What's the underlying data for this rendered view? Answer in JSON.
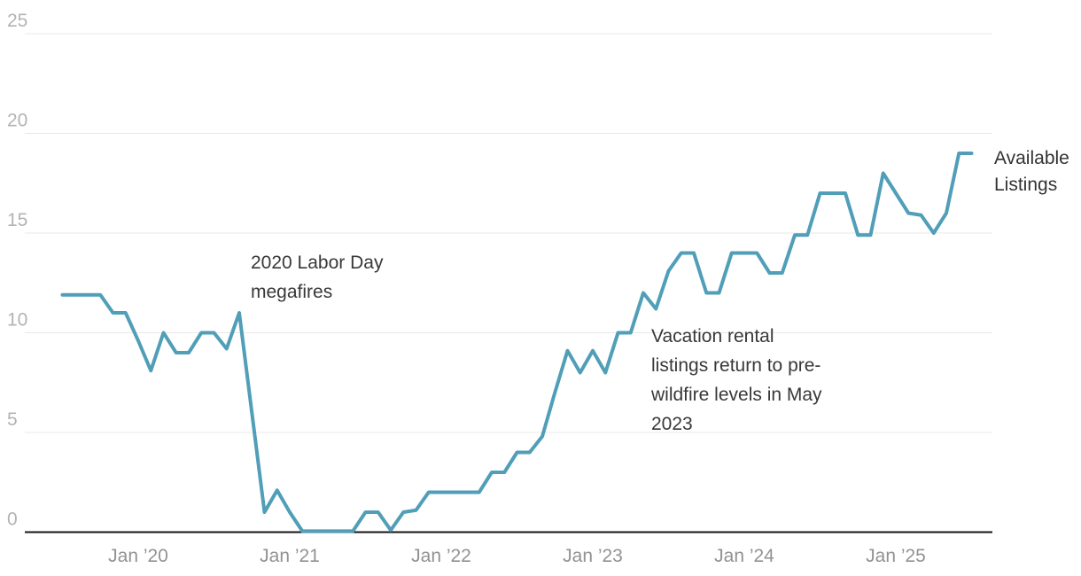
{
  "chart_data": {
    "type": "line",
    "title": "",
    "series_label": "Available Listings",
    "series_label_lines": [
      "Available",
      "Listings"
    ],
    "line_color": "#509eb8",
    "grid": "horizontal",
    "ylim": [
      0,
      25
    ],
    "y_ticks": [
      0,
      5,
      10,
      15,
      20,
      25
    ],
    "x_tick_labels": [
      "Jan ’20",
      "Jan ’21",
      "Jan ’22",
      "Jan ’23",
      "Jan ’24",
      "Jan ’25"
    ],
    "x_tick_positions": [
      "2020-01",
      "2021-01",
      "2022-01",
      "2023-01",
      "2024-01",
      "2025-01"
    ],
    "x": [
      "2019-07",
      "2019-08",
      "2019-09",
      "2019-10",
      "2019-11",
      "2019-12",
      "2020-01",
      "2020-02",
      "2020-03",
      "2020-04",
      "2020-05",
      "2020-06",
      "2020-07",
      "2020-08",
      "2020-09",
      "2020-10",
      "2020-11",
      "2020-12",
      "2021-01",
      "2021-02",
      "2021-03",
      "2021-04",
      "2021-05",
      "2021-06",
      "2021-07",
      "2021-08",
      "2021-09",
      "2021-10",
      "2021-11",
      "2021-12",
      "2022-01",
      "2022-02",
      "2022-03",
      "2022-04",
      "2022-05",
      "2022-06",
      "2022-07",
      "2022-08",
      "2022-09",
      "2022-10",
      "2022-11",
      "2022-12",
      "2023-01",
      "2023-02",
      "2023-03",
      "2023-04",
      "2023-05",
      "2023-06",
      "2023-07",
      "2023-08",
      "2023-09",
      "2023-10",
      "2023-11",
      "2023-12",
      "2024-01",
      "2024-02",
      "2024-03",
      "2024-04",
      "2024-05",
      "2024-06",
      "2024-07",
      "2024-08",
      "2024-09",
      "2024-10",
      "2024-11",
      "2024-12",
      "2025-01",
      "2025-02",
      "2025-03",
      "2025-04",
      "2025-05",
      "2025-06",
      "2025-07"
    ],
    "values": [
      11.9,
      11.9,
      11.9,
      11.9,
      11.0,
      11.0,
      9.6,
      8.1,
      10.0,
      9.0,
      9.0,
      10.0,
      10.0,
      9.2,
      11.0,
      6.0,
      1.0,
      2.1,
      1.0,
      0.05,
      0.05,
      0.05,
      0.05,
      0.05,
      1.0,
      1.0,
      0.1,
      1.0,
      1.1,
      2.0,
      2.0,
      2.0,
      2.0,
      2.0,
      3.0,
      3.0,
      4.0,
      4.0,
      4.8,
      7.0,
      9.1,
      8.0,
      9.1,
      8.0,
      10.0,
      10.0,
      12.0,
      11.2,
      13.1,
      14.0,
      14.0,
      12.0,
      12.0,
      14.0,
      14.0,
      14.0,
      13.0,
      13.0,
      14.9,
      14.9,
      17.0,
      17.0,
      17.0,
      14.9,
      14.9,
      18.0,
      17.0,
      16.0,
      15.9,
      15.0,
      16.0,
      19.0,
      19.0
    ],
    "annotations": [
      {
        "lines": [
          "2020 Labor Day",
          "megafires"
        ]
      },
      {
        "lines": [
          "Vacation rental",
          "listings return to pre-",
          "wildfire levels in May",
          "2023"
        ]
      }
    ],
    "axis_colors": {
      "gridline": "#e8e8e8",
      "axis_line": "#141414",
      "y_tick_label": "#b3b3b3",
      "x_tick_label": "#929292"
    }
  }
}
